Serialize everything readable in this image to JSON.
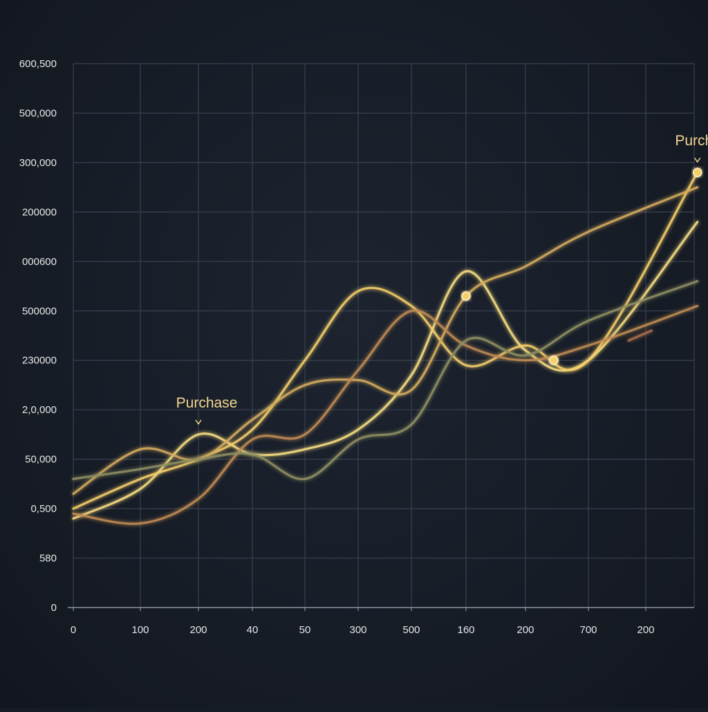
{
  "chart_data": {
    "type": "line",
    "title": "",
    "xlabel": "",
    "ylabel": "",
    "grid": true,
    "legend": "none",
    "x_tick_labels": [
      "0",
      "100",
      "200",
      "40",
      "50",
      "300",
      "500",
      "160",
      "200",
      "700",
      "200"
    ],
    "y_tick_labels": [
      "600,500",
      "500,000",
      "300,000",
      "200000",
      "000600",
      "500000",
      "230000",
      "2,0,000",
      "50,000",
      "0,500",
      "580",
      "0"
    ],
    "y_tick_levels": [
      11,
      10,
      9,
      8,
      7,
      6,
      5,
      4,
      3,
      2,
      1,
      0
    ],
    "ylim": [
      0,
      11
    ],
    "xlim": [
      0,
      10.8
    ],
    "series": [
      {
        "color": "#f7de82",
        "points": [
          [
            0,
            1.8
          ],
          [
            1,
            2.4
          ],
          [
            2,
            3.5
          ],
          [
            3,
            3.1
          ],
          [
            4,
            3.2
          ],
          [
            5,
            3.6
          ],
          [
            6,
            4.7
          ],
          [
            7,
            6.8
          ],
          [
            8,
            5.2
          ],
          [
            9,
            5.0
          ],
          [
            10.9,
            7.8
          ]
        ]
      },
      {
        "color": "#f5cf6a",
        "points": [
          [
            0,
            2.0
          ],
          [
            1,
            2.6
          ],
          [
            2,
            3.0
          ],
          [
            3,
            3.6
          ],
          [
            4,
            5.0
          ],
          [
            5,
            6.4
          ],
          [
            6,
            6.1
          ],
          [
            7,
            4.9
          ],
          [
            8,
            5.3
          ],
          [
            9,
            5.0
          ],
          [
            10.9,
            8.8
          ]
        ]
      },
      {
        "color": "#d4ac5e",
        "points": [
          [
            0,
            2.3
          ],
          [
            1,
            3.2
          ],
          [
            2,
            3.0
          ],
          [
            3,
            3.8
          ],
          [
            4,
            4.5
          ],
          [
            5,
            4.6
          ],
          [
            6,
            4.4
          ],
          [
            7,
            6.3
          ],
          [
            8,
            6.9
          ],
          [
            9,
            7.6
          ],
          [
            10.9,
            8.5
          ]
        ]
      },
      {
        "color": "#c08c52",
        "points": [
          [
            0,
            1.9
          ],
          [
            1,
            1.7
          ],
          [
            2,
            2.2
          ],
          [
            3,
            3.4
          ],
          [
            4,
            3.5
          ],
          [
            5,
            4.8
          ],
          [
            6,
            6.0
          ],
          [
            7,
            5.3
          ],
          [
            8,
            5.0
          ],
          [
            9,
            5.3
          ],
          [
            10.9,
            6.1
          ]
        ]
      },
      {
        "color": "#8f8f62",
        "points": [
          [
            0,
            2.6
          ],
          [
            1,
            2.8
          ],
          [
            2,
            3.0
          ],
          [
            3,
            3.1
          ],
          [
            4,
            2.6
          ],
          [
            5,
            3.4
          ],
          [
            6,
            3.7
          ],
          [
            7,
            5.4
          ],
          [
            8,
            5.1
          ],
          [
            9,
            5.8
          ],
          [
            10.9,
            6.6
          ]
        ]
      },
      {
        "color": "#a86f48",
        "points": [
          [
            9.7,
            5.4
          ],
          [
            10.1,
            5.6
          ]
        ]
      }
    ],
    "markers": [
      {
        "x": 10.9,
        "y": 8.8,
        "color": "#f5cf6a"
      },
      {
        "x": 7.0,
        "y": 6.3,
        "color": "#f5cf6a"
      },
      {
        "x": 8.45,
        "y": 5.0,
        "color": "#f5cf6a"
      }
    ],
    "annotations": [
      {
        "text": "Purchase",
        "x": 2.0,
        "y": 3.5,
        "color": "#f2d690"
      },
      {
        "text": "Purchase",
        "x": 10.9,
        "y": 8.8,
        "color": "#f2d690"
      }
    ]
  }
}
